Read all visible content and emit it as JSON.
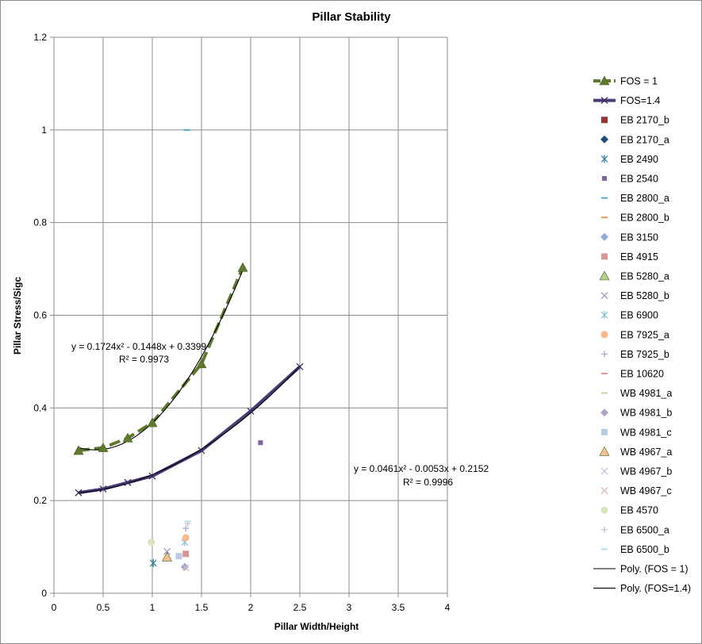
{
  "chart_data": {
    "type": "scatter",
    "title": "Pillar Stability",
    "xlabel": "Pillar Width/Height",
    "ylabel": "Pillar Stress/Sigc",
    "xlim": [
      0,
      4
    ],
    "ylim": [
      0,
      1.2
    ],
    "x_ticks": [
      "0",
      "0.5",
      "1",
      "1.5",
      "2",
      "2.5",
      "3",
      "3.5",
      "4"
    ],
    "y_ticks": [
      "0",
      "0.2",
      "0.4",
      "0.6",
      "0.8",
      "1",
      "1.2"
    ],
    "grid": true,
    "legend_position": "right",
    "series": [
      {
        "name": "FOS = 1",
        "marker": "triangle",
        "line": "dashed",
        "color": "#5f7a2e",
        "x": [
          0.25,
          0.5,
          0.75,
          1.0,
          1.5,
          1.92
        ],
        "y": [
          0.308,
          0.314,
          0.335,
          0.368,
          0.495,
          0.703
        ]
      },
      {
        "name": "FOS=1.4",
        "marker": "x",
        "line": "solid",
        "color": "#4b3a78",
        "x": [
          0.25,
          0.5,
          0.75,
          1.0,
          1.5,
          2.0,
          2.5
        ],
        "y": [
          0.217,
          0.225,
          0.239,
          0.253,
          0.308,
          0.393,
          0.489
        ]
      },
      {
        "name": "EB 2170_b",
        "marker": "square",
        "color": "#943634",
        "x": [],
        "y": []
      },
      {
        "name": "EB  2170_a",
        "marker": "diamond",
        "color": "#1f4e79",
        "x": [],
        "y": []
      },
      {
        "name": "EB 2490",
        "marker": "asterisk",
        "color": "#31859c",
        "x": [
          1.01
        ],
        "y": [
          0.065
        ]
      },
      {
        "name": "EB 2540",
        "marker": "square-small",
        "color": "#8064a2",
        "x": [
          2.1
        ],
        "y": [
          0.325
        ]
      },
      {
        "name": "EB 2800_a",
        "marker": "dash",
        "color": "#4bacc6",
        "x": [
          1.35
        ],
        "y": [
          1.0
        ]
      },
      {
        "name": "EB 2800_b",
        "marker": "dash",
        "color": "#f79646",
        "x": [],
        "y": []
      },
      {
        "name": "EB 3150",
        "marker": "diamond",
        "color": "#8ea9db",
        "x": [
          1.33
        ],
        "y": [
          0.057
        ]
      },
      {
        "name": "EB 4915",
        "marker": "square",
        "color": "#da9694",
        "x": [
          1.34
        ],
        "y": [
          0.085
        ]
      },
      {
        "name": "EB 5280_a",
        "marker": "triangle",
        "color": "#b0d08c",
        "x": [],
        "y": []
      },
      {
        "name": "EB 5280_b",
        "marker": "x",
        "color": "#a39ccf",
        "x": [
          1.15
        ],
        "y": [
          0.09
        ]
      },
      {
        "name": "EB 6900",
        "marker": "asterisk",
        "color": "#8dc6da",
        "x": [
          1.33
        ],
        "y": [
          0.11
        ]
      },
      {
        "name": "EB 7925_a",
        "marker": "circle",
        "color": "#f9b98a",
        "x": [
          1.34
        ],
        "y": [
          0.12
        ]
      },
      {
        "name": "EB 7925_b",
        "marker": "plus",
        "color": "#b4a7d6",
        "x": [
          1.34
        ],
        "y": [
          0.14
        ]
      },
      {
        "name": "EB 10620",
        "marker": "dash",
        "color": "#e6939a",
        "x": [],
        "y": []
      },
      {
        "name": "WB 4981_a",
        "marker": "dash",
        "color": "#c3d69b",
        "x": [],
        "y": []
      },
      {
        "name": "WB 4981_b",
        "marker": "diamond",
        "color": "#b3a2c7",
        "x": [],
        "y": []
      },
      {
        "name": "WB 4981_c",
        "marker": "square",
        "color": "#b8cce4",
        "x": [
          1.27
        ],
        "y": [
          0.08
        ]
      },
      {
        "name": "WB 4967_a",
        "marker": "triangle",
        "color": "#fabf8f",
        "x": [
          1.15
        ],
        "y": [
          0.078
        ]
      },
      {
        "name": "WB 4967_b",
        "marker": "x",
        "color": "#c5c9e8",
        "x": [],
        "y": []
      },
      {
        "name": "WB 4967_c",
        "marker": "x",
        "color": "#e6b9b8",
        "x": [
          1.34
        ],
        "y": [
          0.055
        ]
      },
      {
        "name": "EB 4570",
        "marker": "circle",
        "color": "#d7e4bd",
        "x": [
          0.99
        ],
        "y": [
          0.11
        ]
      },
      {
        "name": "EB 6500_a",
        "marker": "plus",
        "color": "#ccc0da",
        "x": [
          1.36
        ],
        "y": [
          0.15
        ]
      },
      {
        "name": "EB 6500_b",
        "marker": "dash",
        "color": "#b7dee8",
        "x": [
          1.36
        ],
        "y": [
          0.155
        ]
      }
    ],
    "trendlines": [
      {
        "name": "Poly. (FOS = 1)",
        "type": "polynomial",
        "coeffs": [
          0.1724,
          -0.1448,
          0.3399
        ],
        "x_range": [
          0.25,
          1.92
        ],
        "color": "#000000",
        "equation": "y = 0.1724x² - 0.1448x + 0.3399",
        "r_squared": "R² = 0.9973"
      },
      {
        "name": "Poly. (FOS=1.4)",
        "type": "polynomial",
        "coeffs": [
          0.0461,
          -0.0053,
          0.2152
        ],
        "x_range": [
          0.25,
          2.5
        ],
        "color": "#000000",
        "equation": "y = 0.0461x² - 0.0053x + 0.2152",
        "r_squared": "R² = 0.9996"
      }
    ]
  }
}
